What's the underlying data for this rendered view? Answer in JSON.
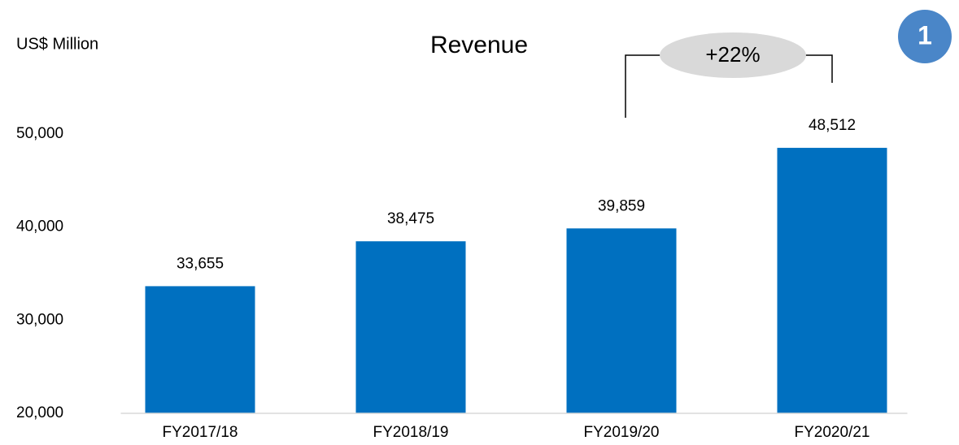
{
  "chart_data": {
    "type": "bar",
    "title": "Revenue",
    "y_axis_label": "US$ Million",
    "annotation": "+22%",
    "badge": "1",
    "categories": [
      "FY2017/18",
      "FY2018/19",
      "FY2019/20",
      "FY2020/21"
    ],
    "values": [
      33655,
      38475,
      39859,
      48512
    ],
    "value_labels": [
      "33,655",
      "38,475",
      "39,859",
      "48,512"
    ],
    "color": "#0070c0",
    "ylim": [
      20000,
      50000
    ],
    "yticks": [
      {
        "value": 20000,
        "label": "20,000"
      },
      {
        "value": 30000,
        "label": "30,000"
      },
      {
        "value": 40000,
        "label": "40,000"
      },
      {
        "value": 50000,
        "label": "50,000"
      }
    ],
    "grid": false
  }
}
